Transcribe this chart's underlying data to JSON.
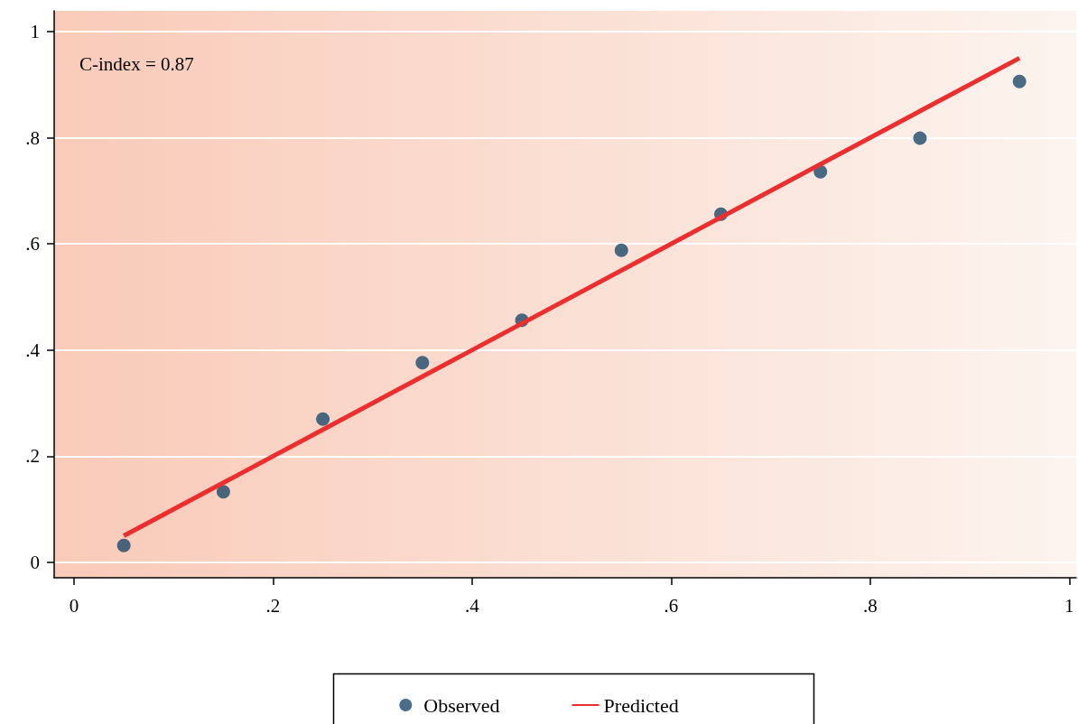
{
  "chart_data": {
    "type": "scatter",
    "annotations": [
      "C-index = 0.87"
    ],
    "series": [
      {
        "name": "Observed",
        "color": "#1b4a6b",
        "marker": "circle",
        "x": [
          0.05,
          0.15,
          0.25,
          0.35,
          0.45,
          0.55,
          0.65,
          0.75,
          0.85,
          0.95
        ],
        "values": [
          0.032,
          0.133,
          0.27,
          0.376,
          0.456,
          0.588,
          0.656,
          0.736,
          0.799,
          0.906
        ]
      },
      {
        "name": "Predicted",
        "type": "line",
        "color": "#ee2e2e",
        "marker": "none",
        "line_style": "solid",
        "x": [
          0.05,
          0.95
        ],
        "values": [
          0.05,
          0.95
        ]
      }
    ],
    "xlim": [
      -0.02,
      1.007
    ],
    "ylim": [
      -0.029,
      1.039
    ],
    "xticks": [
      0,
      {
        "value": 0.2,
        "label": ".2"
      },
      {
        "value": 0.4,
        "label": ".4"
      },
      {
        "value": 0.6,
        "label": ".6"
      },
      {
        "value": 0.8,
        "label": ".8"
      },
      1
    ],
    "yticks": [
      0,
      {
        "value": 0.2,
        "label": ".2"
      },
      {
        "value": 0.4,
        "label": ".4"
      },
      {
        "value": 0.6,
        "label": ".6"
      },
      {
        "value": 0.8,
        "label": ".8"
      },
      1
    ],
    "grid": "y",
    "legend": "bottom"
  }
}
